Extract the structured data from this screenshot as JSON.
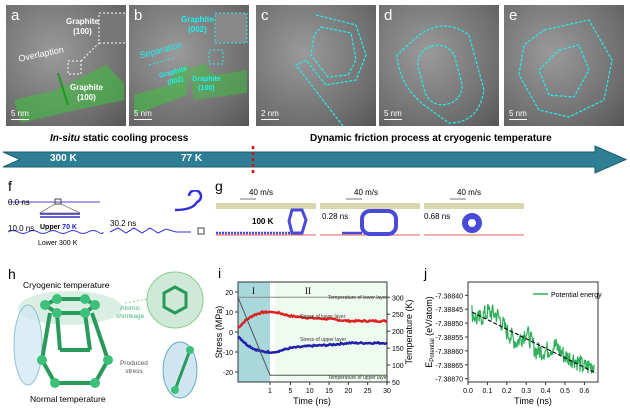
{
  "panels": {
    "a": {
      "letter": "a",
      "overlap": "Overlaption",
      "graphite_top": "Graphite",
      "graphite_top_idx": "(100)",
      "graphite_low": "Graphite",
      "graphite_low_idx": "(100)",
      "scale": "5 nm"
    },
    "b": {
      "letter": "b",
      "separation": "Separation",
      "g002_top": "Graphite",
      "g002_top_idx": "(002)",
      "g002_mid": "Graphite",
      "g002_mid_idx": "(002)",
      "g100": "Graphite",
      "g100_idx": "(100)",
      "scale": "5 nm"
    },
    "c": {
      "letter": "c",
      "scale": "2 nm"
    },
    "d": {
      "letter": "d",
      "scale": "5 nm"
    },
    "e": {
      "letter": "e",
      "scale": "5 nm"
    }
  },
  "timeline": {
    "left_title_italic": "In-situ",
    "left_title": " static cooling process",
    "right_title": "Dynamic friction process at cryogenic temperature",
    "t1": "300 K",
    "t2": "77 K",
    "arrow_color": "#2e7f95",
    "divider_color": "#cc1111"
  },
  "f": {
    "letter": "f",
    "t0": "0.0 ns",
    "t10": "10.0 ns",
    "upper": "Upper ",
    "upper_temp": "70 K",
    "lower": "Lower ",
    "lower_temp": "300 K",
    "t30": "30.2 ns"
  },
  "g": {
    "letter": "g",
    "speed1": "40 m/s",
    "speed2": "40 m/s",
    "speed3": "40 m/s",
    "temp": "100 K",
    "t1": "0.28 ns",
    "t2": "0.68 ns"
  },
  "h": {
    "letter": "h",
    "top": "Cryogenic temperature",
    "bottom": "Normal temperature",
    "shrink1": "Atomic",
    "shrink2": "shrinkage",
    "stress1": "Produced",
    "stress2": "stress"
  },
  "chart_data": [
    {
      "panel": "i",
      "type": "line",
      "xlabel": "Time (ns)",
      "ylabel": "Stress (MPa)",
      "y2label": "Temperature (K)",
      "region_labels": [
        "I",
        "II"
      ],
      "ylim": [
        -25,
        25
      ],
      "y2lim": [
        50,
        345
      ],
      "xticks": [
        "1",
        "5",
        "10",
        "15",
        "20",
        "25",
        "30"
      ],
      "yticks": [
        "-20",
        "-10",
        "0",
        "10",
        "20"
      ],
      "y2ticks": [
        "50",
        "100",
        "150",
        "200",
        "250",
        "300"
      ],
      "x_break": "after 1 ns",
      "series": [
        {
          "name": "Stress of lower layer",
          "axis": "left",
          "color": "#dd2020",
          "x": [
            0,
            0.25,
            0.5,
            0.75,
            1,
            5,
            10,
            15,
            20,
            25,
            30
          ],
          "y": [
            2,
            6,
            8.5,
            9.8,
            10,
            8,
            7,
            6.5,
            5.5,
            5.5,
            5.5
          ]
        },
        {
          "name": "Stress of upper layer",
          "axis": "left",
          "color": "#2020aa",
          "x": [
            0,
            0.25,
            0.5,
            0.75,
            1,
            5,
            10,
            15,
            20,
            25,
            30
          ],
          "y": [
            -2,
            -6,
            -8.5,
            -9.8,
            -10,
            -8,
            -7,
            -6.5,
            -5.5,
            -5.5,
            -5.5
          ]
        },
        {
          "name": "Temperature of lower layer",
          "axis": "right",
          "color": "#888888",
          "x": [
            0,
            30
          ],
          "y": [
            300,
            300
          ]
        },
        {
          "name": "Temperature of upper layer",
          "axis": "right",
          "color": "#555555",
          "x": [
            0,
            1,
            30
          ],
          "y": [
            300,
            70,
            70
          ]
        }
      ]
    },
    {
      "panel": "j",
      "type": "line",
      "xlabel": "Time (ns)",
      "ylabel": "E",
      "ylabel_sub": "Potential",
      "ylabel_unit": " (eV/atom)",
      "xlim": [
        0,
        0.67
      ],
      "ylim": [
        -7.388712,
        -7.388352
      ],
      "xticks": [
        "0.0",
        "0.1",
        "0.2",
        "0.3",
        "0.4",
        "0.5",
        "0.6"
      ],
      "yticks": [
        "-7.38840",
        "-7.38845",
        "-7.38850",
        "-7.38855",
        "-7.38860",
        "-7.38865",
        "-7.38870"
      ],
      "legend": "top-right",
      "series": [
        {
          "name": "Potential energy",
          "color": "#2fae5a",
          "x": [
            0.02,
            0.05,
            0.1,
            0.15,
            0.2,
            0.25,
            0.3,
            0.35,
            0.4,
            0.45,
            0.5,
            0.55,
            0.6,
            0.65
          ],
          "y": [
            -7.38846,
            -7.38849,
            -7.38846,
            -7.38847,
            -7.38853,
            -7.38857,
            -7.38853,
            -7.3886,
            -7.3886,
            -7.38858,
            -7.38862,
            -7.38863,
            -7.38866,
            -7.38865
          ]
        }
      ],
      "trend": {
        "x": [
          0.02,
          0.66
        ],
        "y": [
          -7.38846,
          -7.38868
        ],
        "style": "dashed"
      }
    }
  ]
}
